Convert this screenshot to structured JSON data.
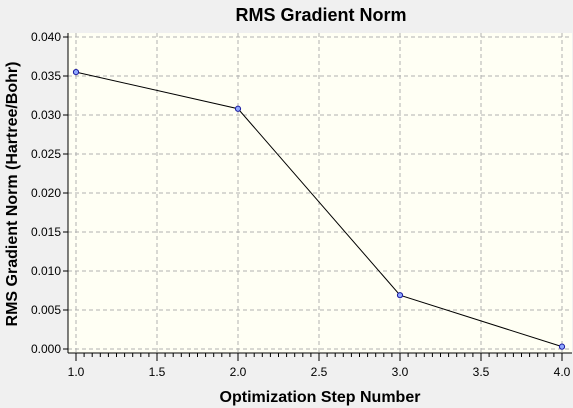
{
  "chart_data": {
    "type": "line",
    "title": "RMS Gradient Norm",
    "xlabel": "Optimization Step Number",
    "ylabel": "RMS Gradient Norm (Hartree/Bohr)",
    "xlim": [
      1.0,
      4.0
    ],
    "ylim": [
      0.0,
      0.04
    ],
    "xticks": [
      "1.0",
      "1.5",
      "2.0",
      "2.5",
      "3.0",
      "3.5",
      "4.0"
    ],
    "yticks": [
      "0.000",
      "0.005",
      "0.010",
      "0.015",
      "0.020",
      "0.025",
      "0.030",
      "0.035",
      "0.040"
    ],
    "grid": true,
    "series": [
      {
        "x": [
          1,
          2,
          3,
          4
        ],
        "values": [
          0.0355,
          0.0308,
          0.0069,
          0.0003
        ]
      }
    ]
  },
  "colors": {
    "plot_background": "#fffff4",
    "page_background": "#f0f0f0",
    "grid": "#b0b0b0",
    "line": "#000000",
    "marker_stroke": "#1a1aa0",
    "marker_fill": "#8fa8ff"
  }
}
